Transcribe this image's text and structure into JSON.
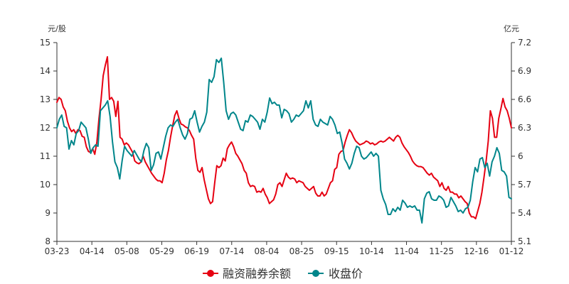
{
  "chart_data": {
    "type": "line",
    "title": "",
    "xlabel": "",
    "left_axis_unit": "元/股",
    "right_axis_unit": "亿元",
    "x_ticks": [
      "03-23",
      "04-14",
      "05-08",
      "05-29",
      "06-19",
      "07-14",
      "08-04",
      "08-25",
      "09-15",
      "10-14",
      "11-04",
      "11-25",
      "12-16",
      "01-12"
    ],
    "left_ylim": [
      8,
      15
    ],
    "left_yticks": [
      "8",
      "9",
      "10",
      "11",
      "12",
      "13",
      "14",
      "15"
    ],
    "right_ylim": [
      5.1,
      7.2
    ],
    "right_yticks": [
      "5.1",
      "5.4",
      "5.7",
      "6",
      "6.3",
      "6.6",
      "6.9",
      "7.2"
    ],
    "grid": false,
    "legend_position": "bottom",
    "series": [
      {
        "name": "融资融券余额",
        "axis": "right",
        "color": "#e60012",
        "values": [
          6.57,
          6.62,
          6.6,
          6.52,
          6.48,
          6.37,
          6.3,
          6.26,
          6.28,
          6.24,
          6.28,
          6.27,
          6.21,
          6.2,
          6.1,
          6.05,
          6.04,
          6.08,
          6.02,
          6.15,
          6.4,
          6.6,
          6.85,
          6.96,
          7.05,
          6.6,
          6.62,
          6.58,
          6.42,
          6.58,
          6.2,
          6.18,
          6.12,
          6.14,
          6.12,
          6.08,
          6.04,
          5.95,
          5.93,
          5.92,
          5.94,
          6.0,
          5.94,
          5.9,
          5.86,
          5.82,
          5.79,
          5.76,
          5.74,
          5.74,
          5.72,
          5.82,
          5.96,
          6.06,
          6.2,
          6.32,
          6.43,
          6.48,
          6.4,
          6.34,
          6.33,
          6.31,
          6.3,
          6.27,
          6.22,
          6.18,
          5.98,
          5.85,
          5.83,
          5.88,
          5.75,
          5.65,
          5.55,
          5.5,
          5.52,
          5.72,
          5.9,
          5.88,
          5.9,
          5.98,
          5.95,
          6.08,
          6.12,
          6.15,
          6.1,
          6.03,
          6.0,
          5.96,
          5.92,
          5.85,
          5.82,
          5.72,
          5.68,
          5.69,
          5.68,
          5.62,
          5.63,
          5.62,
          5.66,
          5.6,
          5.56,
          5.5,
          5.52,
          5.54,
          5.6,
          5.7,
          5.72,
          5.68,
          5.75,
          5.82,
          5.78,
          5.76,
          5.77,
          5.76,
          5.72,
          5.74,
          5.73,
          5.72,
          5.68,
          5.66,
          5.64,
          5.66,
          5.68,
          5.61,
          5.58,
          5.58,
          5.62,
          5.58,
          5.6,
          5.66,
          5.72,
          5.74,
          5.86,
          5.88,
          6.02,
          6.05,
          6.06,
          6.15,
          6.22,
          6.28,
          6.25,
          6.2,
          6.16,
          6.14,
          6.12,
          6.13,
          6.14,
          6.16,
          6.15,
          6.13,
          6.14,
          6.12,
          6.13,
          6.15,
          6.16,
          6.15,
          6.16,
          6.18,
          6.2,
          6.18,
          6.16,
          6.2,
          6.22,
          6.2,
          6.14,
          6.1,
          6.07,
          6.04,
          6.0,
          5.95,
          5.92,
          5.9,
          5.89,
          5.89,
          5.88,
          5.85,
          5.82,
          5.8,
          5.82,
          5.78,
          5.76,
          5.74,
          5.68,
          5.72,
          5.66,
          5.64,
          5.68,
          5.62,
          5.62,
          5.6,
          5.6,
          5.56,
          5.58,
          5.55,
          5.52,
          5.5,
          5.4,
          5.36,
          5.36,
          5.34,
          5.42,
          5.5,
          5.62,
          5.78,
          5.95,
          6.16,
          6.48,
          6.4,
          6.2,
          6.2,
          6.4,
          6.5,
          6.61,
          6.52,
          6.48,
          6.4,
          6.3
        ]
      },
      {
        "name": "收盘价",
        "axis": "left",
        "color": "#00868b",
        "values": [
          12.0,
          12.3,
          12.45,
          12.05,
          12.0,
          11.25,
          11.55,
          11.4,
          11.8,
          11.9,
          12.2,
          12.1,
          12.0,
          11.6,
          11.1,
          11.3,
          11.4,
          11.35,
          12.6,
          12.7,
          12.8,
          12.95,
          12.4,
          11.5,
          10.8,
          10.6,
          10.2,
          10.85,
          11.35,
          11.2,
          11.1,
          11.0,
          11.2,
          11.05,
          10.9,
          10.8,
          11.2,
          11.45,
          11.3,
          10.5,
          10.7,
          11.1,
          11.15,
          10.9,
          11.3,
          11.7,
          12.0,
          12.1,
          12.05,
          12.2,
          12.3,
          12.0,
          11.75,
          11.6,
          11.8,
          12.3,
          12.35,
          12.6,
          12.2,
          11.85,
          12.05,
          12.2,
          12.55,
          13.7,
          13.6,
          13.8,
          14.4,
          14.3,
          14.45,
          13.6,
          12.6,
          12.3,
          12.5,
          12.55,
          12.45,
          12.2,
          11.95,
          11.9,
          12.25,
          12.2,
          12.45,
          12.4,
          12.3,
          12.2,
          11.95,
          12.3,
          12.2,
          12.55,
          13.05,
          12.85,
          12.9,
          12.8,
          12.8,
          12.35,
          12.65,
          12.6,
          12.5,
          12.2,
          12.3,
          12.45,
          12.4,
          12.5,
          12.6,
          12.95,
          12.7,
          12.95,
          12.3,
          12.1,
          12.05,
          12.3,
          12.2,
          12.15,
          12.1,
          12.4,
          12.3,
          12.1,
          11.8,
          11.85,
          11.45,
          10.9,
          10.75,
          10.55,
          10.75,
          11.1,
          11.35,
          11.3,
          11.0,
          10.9,
          10.95,
          11.05,
          11.15,
          11.0,
          11.1,
          11.0,
          9.8,
          9.5,
          9.3,
          8.95,
          8.95,
          9.15,
          9.05,
          9.2,
          9.1,
          9.45,
          9.35,
          9.2,
          9.25,
          9.2,
          9.25,
          9.1,
          9.1,
          8.65,
          9.5,
          9.7,
          9.75,
          9.5,
          9.45,
          9.45,
          9.6,
          9.55,
          9.45,
          9.2,
          9.25,
          9.55,
          9.4,
          9.25,
          9.05,
          9.1,
          9.0,
          9.15,
          9.2,
          9.45,
          10.1,
          10.6,
          10.45,
          10.9,
          10.95,
          10.6,
          10.75,
          10.3,
          10.8,
          11.0,
          11.3,
          11.1,
          10.5,
          10.45,
          10.3,
          9.55,
          9.5
        ]
      }
    ]
  }
}
